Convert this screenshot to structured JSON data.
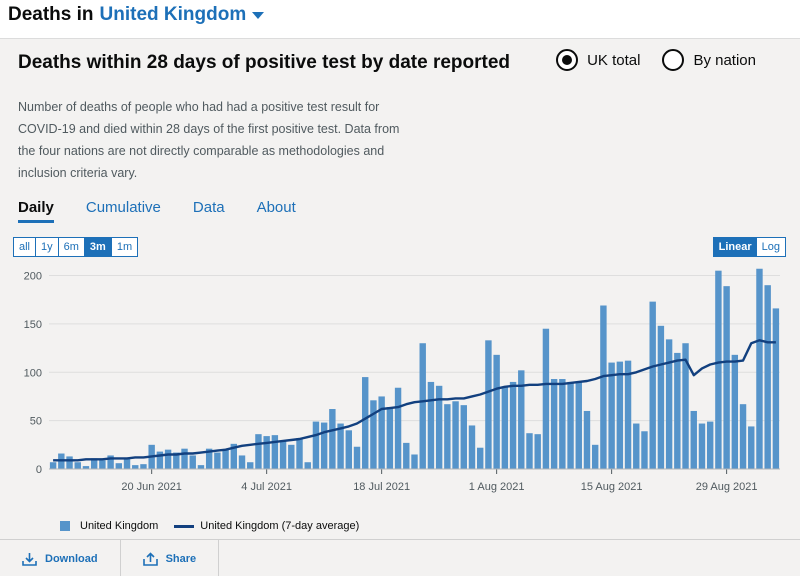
{
  "header": {
    "prefix": "Deaths in",
    "area": "United Kingdom"
  },
  "card": {
    "title": "Deaths within 28 days of positive test by date reported",
    "description": "Number of deaths of people who had had a positive test result for COVID-19 and died within 28 days of the first positive test. Data from the four nations are not directly comparable as methodologies and inclusion criteria vary.",
    "radios": [
      {
        "label": "UK total",
        "checked": true
      },
      {
        "label": "By nation",
        "checked": false
      }
    ],
    "tabs": [
      {
        "label": "Daily",
        "active": true
      },
      {
        "label": "Cumulative",
        "active": false
      },
      {
        "label": "Data",
        "active": false
      },
      {
        "label": "About",
        "active": false
      }
    ],
    "ranges": [
      {
        "label": "all",
        "active": false
      },
      {
        "label": "1y",
        "active": false
      },
      {
        "label": "6m",
        "active": false
      },
      {
        "label": "3m",
        "active": true
      },
      {
        "label": "1m",
        "active": false
      }
    ],
    "scales": [
      {
        "label": "Linear",
        "active": true
      },
      {
        "label": "Log",
        "active": false
      }
    ],
    "legend": {
      "bar_label": "United Kingdom",
      "line_label": "United Kingdom (7-day average)"
    }
  },
  "footer": {
    "download_label": "Download",
    "share_label": "Share"
  },
  "colors": {
    "bar": "#5694ca",
    "line": "#12407f",
    "accent": "#1d70b8"
  },
  "chart_data": {
    "type": "bar",
    "yticks": [
      0,
      50,
      100,
      150,
      200
    ],
    "ylim": [
      0,
      215
    ],
    "xtick_labels": [
      {
        "label": "20 Jun 2021",
        "index": 12
      },
      {
        "label": "4 Jul 2021",
        "index": 26
      },
      {
        "label": "18 Jul 2021",
        "index": 40
      },
      {
        "label": "1 Aug 2021",
        "index": 54
      },
      {
        "label": "15 Aug 2021",
        "index": 68
      },
      {
        "label": "29 Aug 2021",
        "index": 82
      }
    ],
    "series": [
      {
        "name": "United Kingdom",
        "type": "bar",
        "values": [
          7,
          16,
          13,
          7,
          3,
          11,
          9,
          14,
          6,
          11,
          4,
          5,
          25,
          18,
          20,
          17,
          21,
          14,
          4,
          21,
          17,
          20,
          26,
          14,
          7,
          36,
          34,
          35,
          29,
          25,
          32,
          7,
          49,
          48,
          62,
          47,
          40,
          23,
          95,
          71,
          75,
          64,
          84,
          27,
          15,
          130,
          90,
          86,
          67,
          70,
          66,
          45,
          22,
          133,
          118,
          85,
          90,
          102,
          37,
          36,
          145,
          93,
          93,
          90,
          90,
          60,
          25,
          169,
          110,
          111,
          112,
          47,
          39,
          173,
          148,
          134,
          120,
          130,
          60,
          47,
          49,
          205,
          189,
          118,
          67,
          44,
          207,
          190,
          166
        ]
      },
      {
        "name": "United Kingdom (7-day average)",
        "type": "line",
        "values": [
          9,
          9,
          9,
          9,
          10,
          10,
          10,
          11,
          11,
          11,
          12,
          12,
          13,
          14,
          15,
          15,
          16,
          16,
          17,
          18,
          19,
          20,
          22,
          24,
          25,
          26,
          27,
          28,
          29,
          30,
          31,
          33,
          35,
          38,
          40,
          42,
          44,
          47,
          52,
          57,
          62,
          63,
          64,
          67,
          69,
          70,
          71,
          72,
          72,
          73,
          73,
          75,
          77,
          80,
          83,
          85,
          86,
          86,
          87,
          87,
          88,
          88,
          88,
          89,
          90,
          91,
          93,
          96,
          97,
          98,
          98,
          100,
          103,
          106,
          108,
          110,
          112,
          113,
          97,
          104,
          108,
          110,
          111,
          111,
          112,
          130,
          133,
          131,
          131
        ]
      }
    ]
  }
}
